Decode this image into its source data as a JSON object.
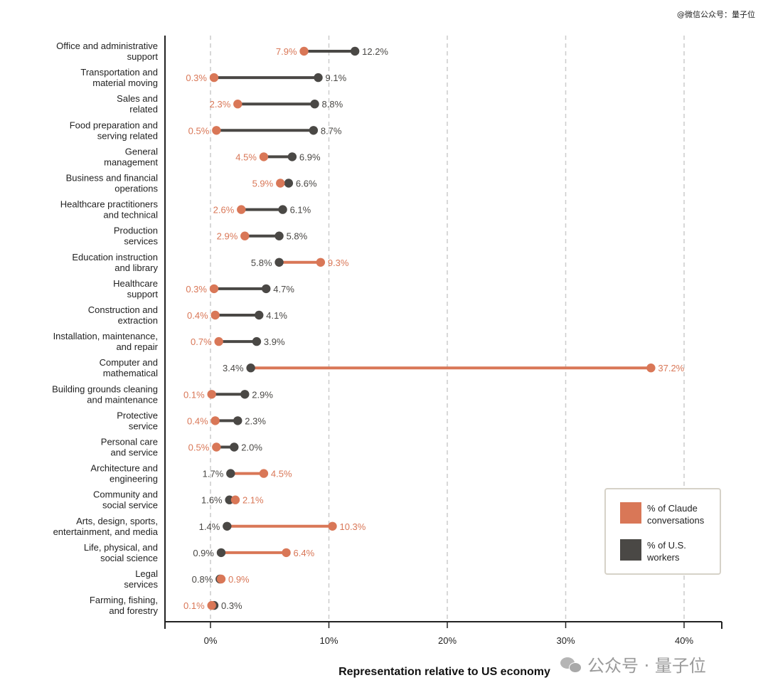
{
  "watermark_top": "@微信公众号：量子位",
  "watermark_bottom": "公众号 · 量子位",
  "colors": {
    "claude": "#d97757",
    "workers": "#4a4845",
    "grid": "#cccccc",
    "axis": "#222222"
  },
  "legend": {
    "claude": "% of Claude conversations",
    "workers": "% of U.S. workers"
  },
  "chart_data": {
    "type": "dumbbell",
    "xlabel": "Representation relative to US economy",
    "xlim": [
      -4,
      43
    ],
    "xticks": [
      0,
      10,
      20,
      30,
      40
    ],
    "xtick_labels": [
      "0%",
      "10%",
      "20%",
      "30%",
      "40%"
    ],
    "grid": "vertical dashed",
    "legend_position": "bottom-right",
    "series": [
      {
        "name": "% of Claude conversations",
        "key": "claude"
      },
      {
        "name": "% of U.S. workers",
        "key": "workers"
      }
    ],
    "rows": [
      {
        "lines": [
          "Office and administrative",
          "support"
        ],
        "claude": 7.9,
        "workers": 12.2,
        "claude_label": "7.9%",
        "workers_label": "12.2%"
      },
      {
        "lines": [
          "Transportation and",
          "material moving"
        ],
        "claude": 0.3,
        "workers": 9.1,
        "claude_label": "0.3%",
        "workers_label": "9.1%"
      },
      {
        "lines": [
          "Sales and",
          "related"
        ],
        "claude": 2.3,
        "workers": 8.8,
        "claude_label": "2.3%",
        "workers_label": "8.8%"
      },
      {
        "lines": [
          "Food preparation and",
          "serving related"
        ],
        "claude": 0.5,
        "workers": 8.7,
        "claude_label": "0.5%",
        "workers_label": "8.7%"
      },
      {
        "lines": [
          "General",
          "management"
        ],
        "claude": 4.5,
        "workers": 6.9,
        "claude_label": "4.5%",
        "workers_label": "6.9%"
      },
      {
        "lines": [
          "Business and financial",
          "operations"
        ],
        "claude": 5.9,
        "workers": 6.6,
        "claude_label": "5.9%",
        "workers_label": "6.6%"
      },
      {
        "lines": [
          "Healthcare practitioners",
          "and technical"
        ],
        "claude": 2.6,
        "workers": 6.1,
        "claude_label": "2.6%",
        "workers_label": "6.1%"
      },
      {
        "lines": [
          "Production",
          "services"
        ],
        "claude": 2.9,
        "workers": 5.8,
        "claude_label": "2.9%",
        "workers_label": "5.8%"
      },
      {
        "lines": [
          "Education instruction",
          "and library"
        ],
        "claude": 9.3,
        "workers": 5.8,
        "claude_label": "9.3%",
        "workers_label": "5.8%"
      },
      {
        "lines": [
          "Healthcare",
          "support"
        ],
        "claude": 0.3,
        "workers": 4.7,
        "claude_label": "0.3%",
        "workers_label": "4.7%"
      },
      {
        "lines": [
          "Construction and",
          "extraction"
        ],
        "claude": 0.4,
        "workers": 4.1,
        "claude_label": "0.4%",
        "workers_label": "4.1%"
      },
      {
        "lines": [
          "Installation, maintenance,",
          "and repair"
        ],
        "claude": 0.7,
        "workers": 3.9,
        "claude_label": "0.7%",
        "workers_label": "3.9%"
      },
      {
        "lines": [
          "Computer and",
          "mathematical"
        ],
        "claude": 37.2,
        "workers": 3.4,
        "claude_label": "37.2%",
        "workers_label": "3.4%"
      },
      {
        "lines": [
          "Building grounds cleaning",
          "and maintenance"
        ],
        "claude": 0.1,
        "workers": 2.9,
        "claude_label": "0.1%",
        "workers_label": "2.9%"
      },
      {
        "lines": [
          "Protective",
          "service"
        ],
        "claude": 0.4,
        "workers": 2.3,
        "claude_label": "0.4%",
        "workers_label": "2.3%"
      },
      {
        "lines": [
          "Personal care",
          "and service"
        ],
        "claude": 0.5,
        "workers": 2.0,
        "claude_label": "0.5%",
        "workers_label": "2.0%"
      },
      {
        "lines": [
          "Architecture and",
          "engineering"
        ],
        "claude": 4.5,
        "workers": 1.7,
        "claude_label": "4.5%",
        "workers_label": "1.7%"
      },
      {
        "lines": [
          "Community and",
          "social service"
        ],
        "claude": 2.1,
        "workers": 1.6,
        "claude_label": "2.1%",
        "workers_label": "1.6%"
      },
      {
        "lines": [
          "Arts, design, sports,",
          "entertainment, and media"
        ],
        "claude": 10.3,
        "workers": 1.4,
        "claude_label": "10.3%",
        "workers_label": "1.4%"
      },
      {
        "lines": [
          "Life, physical, and",
          "social science"
        ],
        "claude": 6.4,
        "workers": 0.9,
        "claude_label": "6.4%",
        "workers_label": "0.9%"
      },
      {
        "lines": [
          "Legal",
          "services"
        ],
        "claude": 0.9,
        "workers": 0.8,
        "claude_label": "0.9%",
        "workers_label": "0.8%"
      },
      {
        "lines": [
          "Farming, fishing,",
          "and forestry"
        ],
        "claude": 0.1,
        "workers": 0.3,
        "claude_label": "0.1%",
        "workers_label": "0.3%"
      }
    ]
  }
}
